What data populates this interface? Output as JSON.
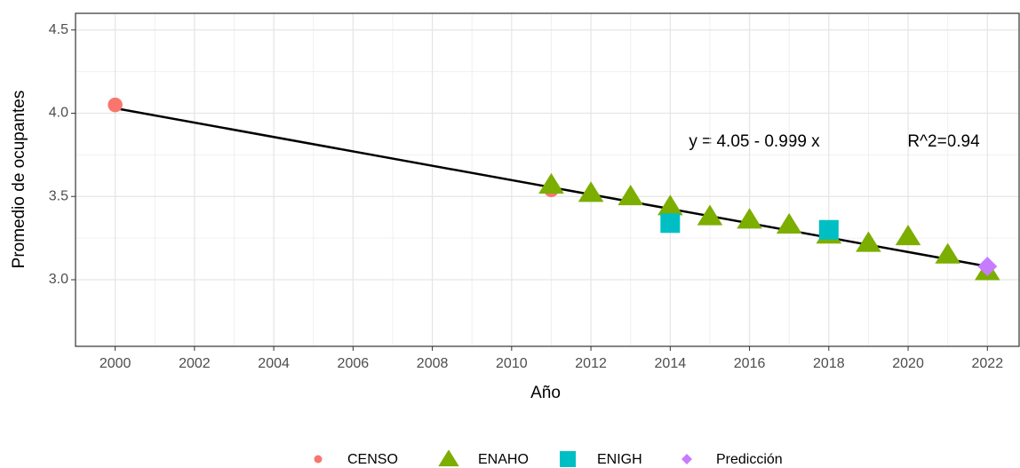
{
  "chart_data": {
    "type": "scatter",
    "x_label": "Año",
    "y_label": "Promedio de ocupantes",
    "annotations": [
      "y = 4.05 - 0.999 x",
      "R^2=0.94"
    ],
    "xlim": [
      1999,
      2022.8
    ],
    "ylim": [
      2.6,
      4.6
    ],
    "xticks": [
      2000,
      2002,
      2004,
      2006,
      2008,
      2010,
      2012,
      2014,
      2016,
      2018,
      2020,
      2022
    ],
    "yticks": [
      {
        "value": 3,
        "label": "3.0"
      },
      3.5,
      {
        "value": 4,
        "label": "4.0"
      },
      4.5
    ],
    "grid": true,
    "legend": "bottom",
    "fit_line": {
      "x": [
        2000,
        2022
      ],
      "values": [
        4.03,
        3.08
      ],
      "color": "#000000"
    },
    "series": [
      {
        "name": "CENSO",
        "color": "#F8766D",
        "shape": "circle",
        "x": [
          2000,
          2011
        ],
        "values": [
          4.05,
          3.54
        ]
      },
      {
        "name": "ENAHO",
        "color": "#7CAE00",
        "shape": "triangle",
        "x": [
          2011,
          2012,
          2013,
          2014,
          2015,
          2016,
          2017,
          2018,
          2019,
          2020,
          2021,
          2022
        ],
        "values": [
          3.57,
          3.52,
          3.5,
          3.44,
          3.38,
          3.36,
          3.33,
          3.27,
          3.22,
          3.26,
          3.15,
          3.05
        ]
      },
      {
        "name": "ENIGH",
        "color": "#00BFC4",
        "shape": "square",
        "x": [
          2014,
          2018
        ],
        "values": [
          3.34,
          3.3
        ]
      },
      {
        "name": "Predicción",
        "color": "#C77CFF",
        "shape": "diamond",
        "x": [
          2022
        ],
        "values": [
          3.08
        ]
      }
    ]
  }
}
